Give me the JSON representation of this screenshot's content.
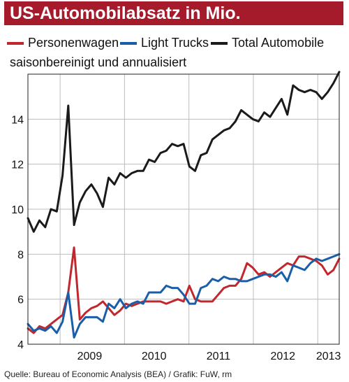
{
  "title": "US-Automobilabsatz in Mio.",
  "subtitle": "saisonbereinigt und annualisiert",
  "source": "Quelle: Bureau of Economic Analysis (BEA) / Grafik: FuW, rm",
  "colors": {
    "title_bg": "#a61b2b",
    "personenwagen": "#c1272d",
    "light_trucks": "#1a5ea8",
    "total": "#1a1a1a"
  },
  "legend": [
    {
      "label": "Personenwagen",
      "color": "#c1272d"
    },
    {
      "label": "Light Trucks",
      "color": "#1a5ea8"
    },
    {
      "label": "Total Automobile",
      "color": "#1a1a1a"
    }
  ],
  "chart_data": {
    "type": "line",
    "title": "US-Automobilabsatz in Mio.",
    "subtitle": "saisonbereinigt und annualisiert",
    "x_start": "2008-07",
    "x_end": "2013-05",
    "x_ticks": [
      "2009",
      "2010",
      "2011",
      "2012",
      "2013"
    ],
    "ylim": [
      4,
      16
    ],
    "y_ticks": [
      4,
      6,
      8,
      10,
      12,
      14
    ],
    "grid": true,
    "legend_position": "top",
    "series": [
      {
        "name": "Personenwagen",
        "color": "#c1272d",
        "values": [
          4.7,
          4.5,
          4.8,
          4.7,
          4.9,
          5.1,
          5.3,
          6.3,
          8.3,
          5.1,
          5.4,
          5.6,
          5.7,
          5.9,
          5.6,
          5.3,
          5.5,
          5.8,
          5.7,
          5.8,
          5.9,
          5.9,
          5.9,
          5.9,
          5.8,
          5.9,
          6.0,
          5.9,
          6.6,
          6.0,
          5.9,
          5.9,
          5.9,
          6.2,
          6.5,
          6.6,
          6.6,
          6.9,
          7.6,
          7.4,
          7.1,
          7.2,
          7.0,
          7.2,
          7.4,
          7.6,
          7.5,
          7.9,
          7.9,
          7.8,
          7.7,
          7.5,
          7.1,
          7.3,
          7.8
        ]
      },
      {
        "name": "Light Trucks",
        "color": "#1a5ea8",
        "values": [
          4.9,
          4.6,
          4.7,
          4.6,
          4.8,
          4.5,
          5.0,
          6.3,
          4.3,
          4.9,
          5.2,
          5.2,
          5.2,
          5.0,
          5.8,
          5.6,
          6.0,
          5.6,
          5.8,
          5.9,
          5.8,
          6.3,
          6.3,
          6.3,
          6.6,
          6.5,
          6.5,
          6.2,
          5.8,
          5.8,
          6.5,
          6.6,
          6.9,
          6.8,
          7.0,
          6.9,
          6.9,
          6.8,
          6.8,
          6.9,
          7.0,
          7.1,
          7.1,
          7.0,
          7.2,
          6.8,
          7.5,
          7.4,
          7.3,
          7.6,
          7.8,
          7.7,
          7.8,
          7.9,
          8.0
        ]
      },
      {
        "name": "Total Automobile",
        "color": "#1a1a1a",
        "values": [
          9.6,
          9.0,
          9.5,
          9.2,
          10.0,
          9.9,
          11.5,
          14.6,
          9.3,
          10.3,
          10.8,
          11.1,
          10.7,
          10.1,
          11.4,
          11.1,
          11.6,
          11.4,
          11.6,
          11.7,
          11.7,
          12.2,
          12.1,
          12.5,
          12.6,
          12.9,
          12.8,
          12.9,
          11.9,
          11.7,
          12.4,
          12.5,
          13.1,
          13.3,
          13.5,
          13.6,
          13.9,
          14.4,
          14.2,
          14.0,
          13.9,
          14.3,
          14.1,
          14.5,
          14.9,
          14.2,
          15.5,
          15.3,
          15.2,
          15.3,
          15.2,
          14.9,
          15.2,
          15.6,
          16.1
        ]
      }
    ]
  }
}
